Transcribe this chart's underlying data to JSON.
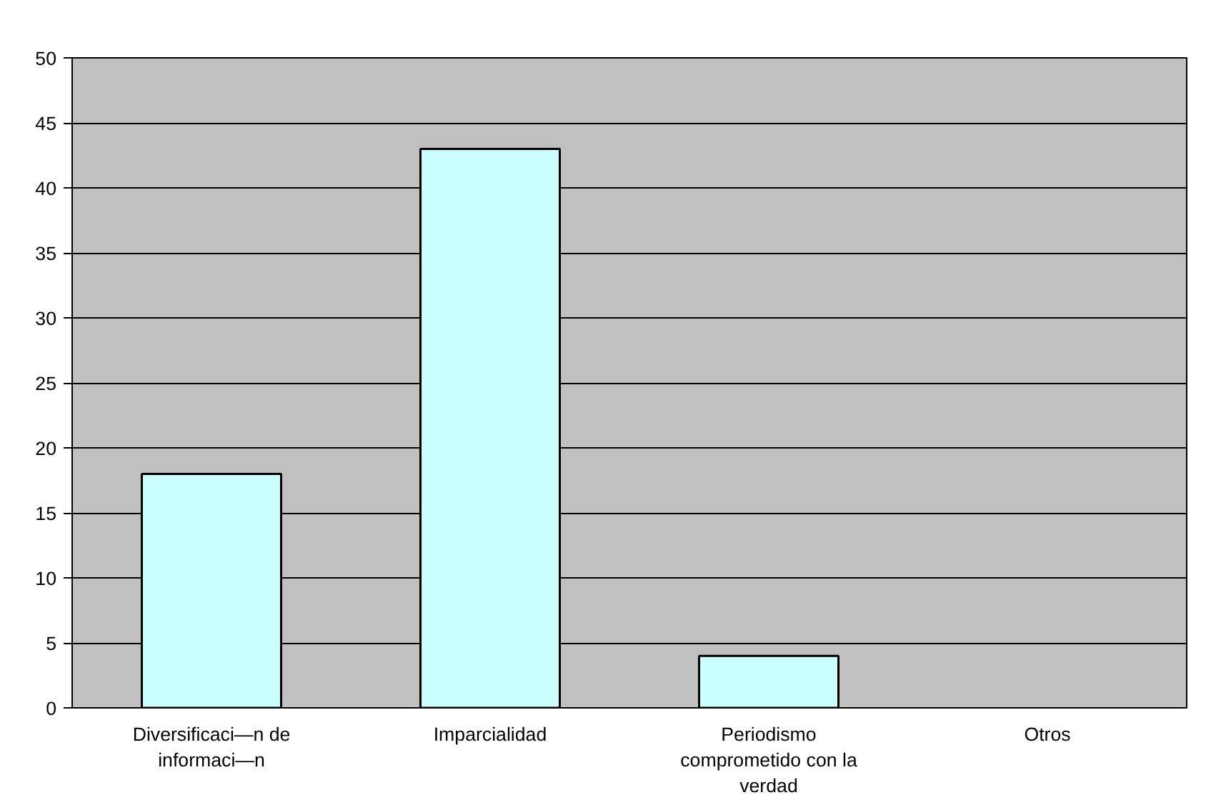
{
  "chart_data": {
    "type": "bar",
    "categories": [
      "Diversificaci—n de informaci—n",
      "Imparcialidad",
      "Periodismo comprometido con la verdad",
      "Otros"
    ],
    "values": [
      18,
      43,
      4,
      0
    ],
    "color": "#ccffff",
    "ylim": [
      0,
      50
    ],
    "yticks": [
      0,
      5,
      10,
      15,
      20,
      25,
      30,
      35,
      40,
      45,
      50
    ],
    "grid": "y"
  }
}
